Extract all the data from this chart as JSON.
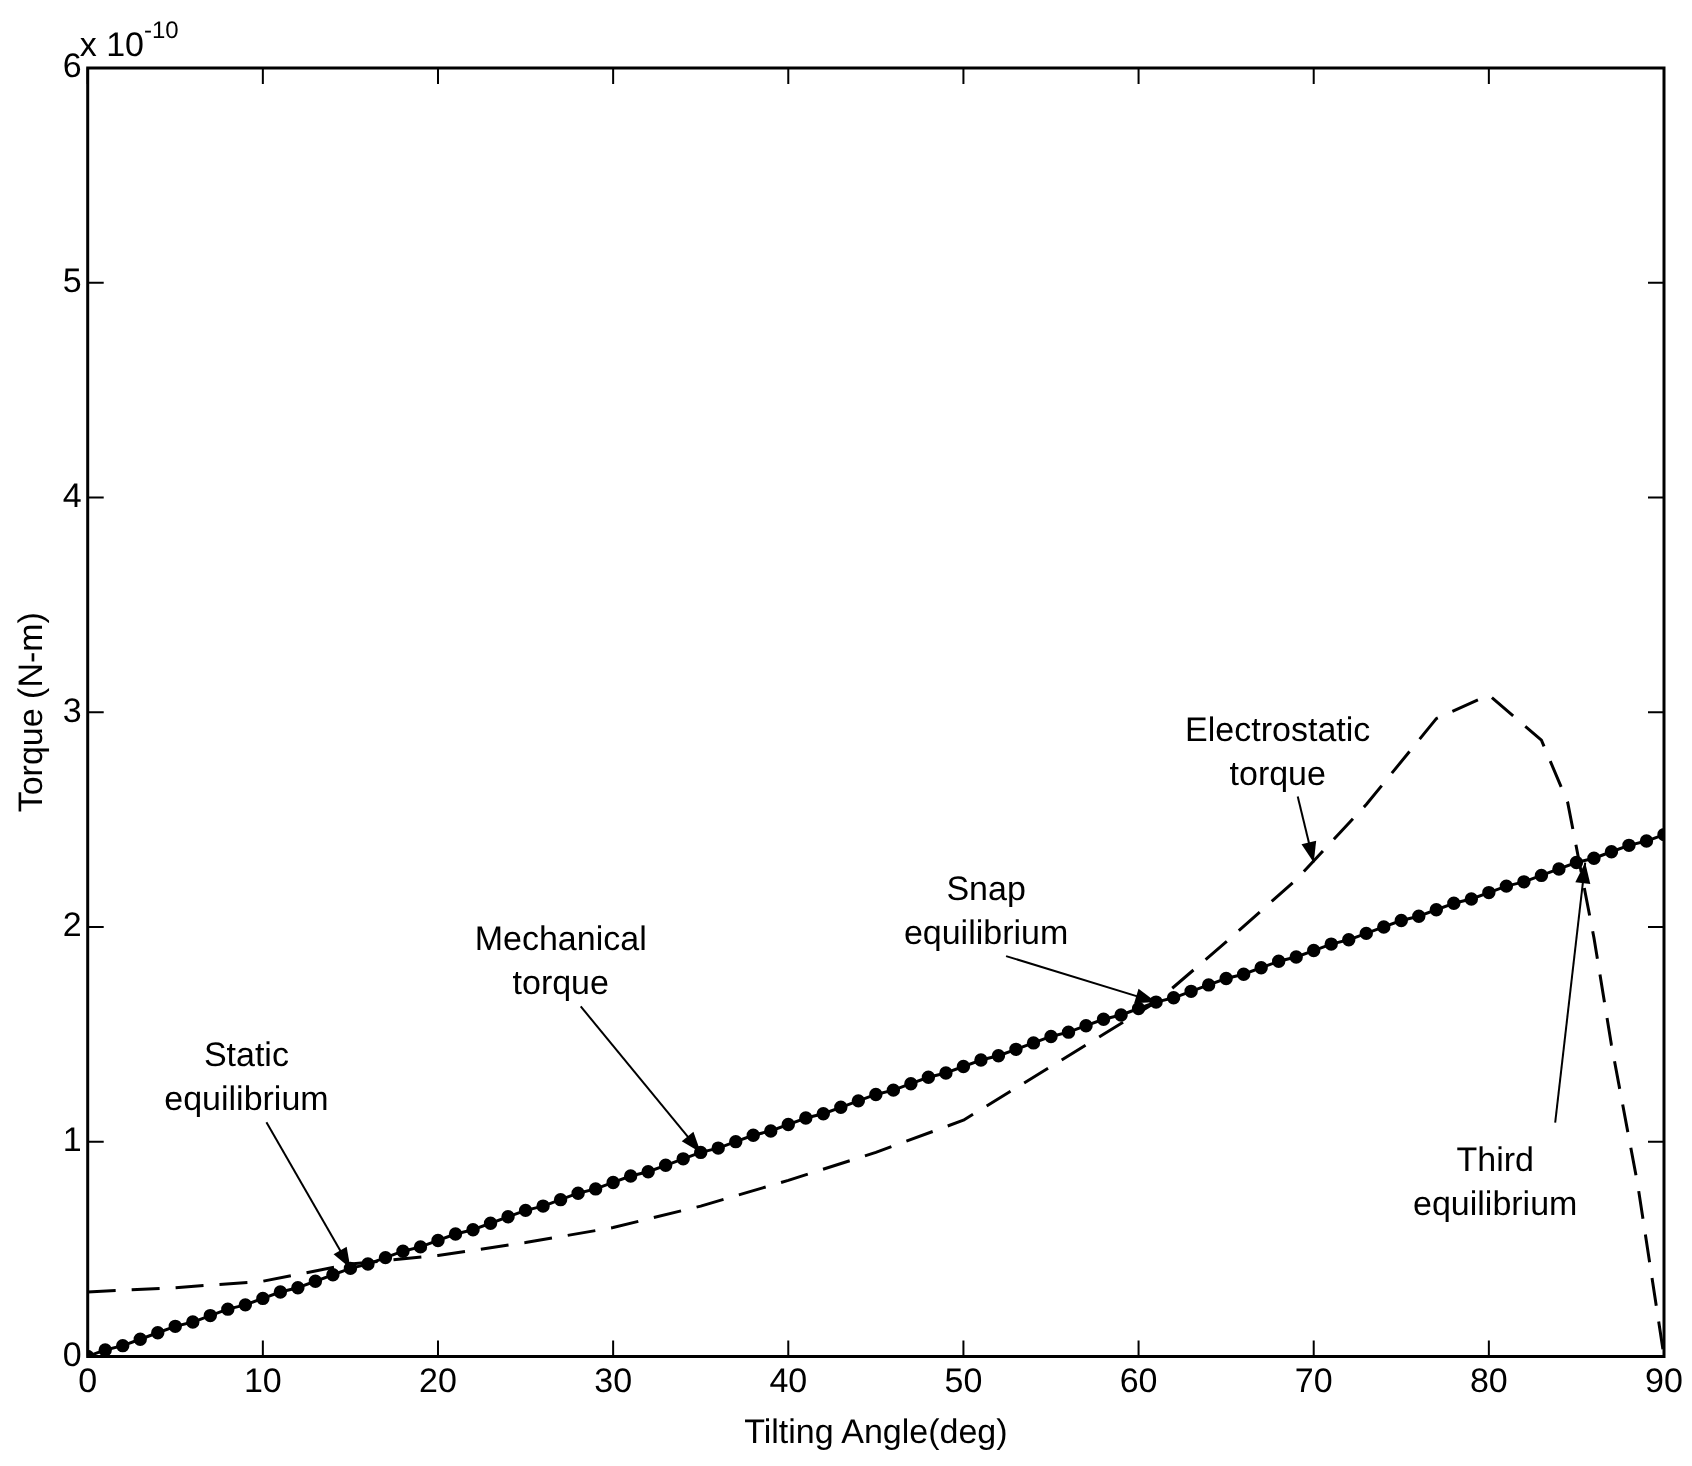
{
  "chart_data": {
    "type": "line",
    "xlabel": "Tilting Angle(deg)",
    "ylabel": "Torque (N-m)",
    "xlim": [
      0,
      90
    ],
    "xticks": [
      0,
      10,
      20,
      30,
      40,
      50,
      60,
      70,
      80,
      90
    ],
    "ylim": [
      0,
      6
    ],
    "yticks": [
      0,
      1,
      2,
      3,
      4,
      5,
      6
    ],
    "grid": false,
    "legend": false,
    "annotations": [
      "x 10$^{-10}$",
      {
        "text": "Static equilibrium",
        "x": 15,
        "y": 0.41
      },
      {
        "text": "Mechanical torque",
        "x": 35,
        "y": 0.95
      },
      {
        "text": "Snap equilibrium",
        "x": 61,
        "y": 1.65
      },
      {
        "text": "Electrostatic torque",
        "x": 70,
        "y": 2.3
      },
      {
        "text": "Third equilibrium",
        "x": 85.5,
        "y": 2.3
      }
    ],
    "series": [
      {
        "color": "#000000",
        "marker": "circle",
        "line_style": "solid",
        "x": [
          0,
          1,
          2,
          3,
          4,
          5,
          6,
          7,
          8,
          9,
          10,
          11,
          12,
          13,
          14,
          15,
          16,
          17,
          18,
          19,
          20,
          21,
          22,
          23,
          24,
          25,
          26,
          27,
          28,
          29,
          30,
          31,
          32,
          33,
          34,
          35,
          36,
          37,
          38,
          39,
          40,
          41,
          42,
          43,
          44,
          45,
          46,
          47,
          48,
          49,
          50,
          51,
          52,
          53,
          54,
          55,
          56,
          57,
          58,
          59,
          60,
          61,
          62,
          63,
          64,
          65,
          66,
          67,
          68,
          69,
          70,
          71,
          72,
          73,
          74,
          75,
          76,
          77,
          78,
          79,
          80,
          81,
          82,
          83,
          84,
          85,
          86,
          87,
          88,
          89,
          90
        ],
        "values": [
          0,
          0.03,
          0.05,
          0.08,
          0.11,
          0.14,
          0.16,
          0.19,
          0.22,
          0.24,
          0.27,
          0.3,
          0.32,
          0.35,
          0.38,
          0.41,
          0.43,
          0.46,
          0.49,
          0.51,
          0.54,
          0.57,
          0.59,
          0.62,
          0.65,
          0.68,
          0.7,
          0.73,
          0.76,
          0.78,
          0.81,
          0.84,
          0.86,
          0.89,
          0.92,
          0.95,
          0.97,
          1.0,
          1.03,
          1.05,
          1.08,
          1.11,
          1.13,
          1.16,
          1.19,
          1.22,
          1.24,
          1.27,
          1.3,
          1.32,
          1.35,
          1.38,
          1.4,
          1.43,
          1.46,
          1.49,
          1.51,
          1.54,
          1.57,
          1.59,
          1.62,
          1.65,
          1.67,
          1.7,
          1.73,
          1.76,
          1.78,
          1.81,
          1.84,
          1.86,
          1.89,
          1.92,
          1.94,
          1.97,
          2.0,
          2.03,
          2.05,
          2.08,
          2.11,
          2.13,
          2.16,
          2.19,
          2.21,
          2.24,
          2.27,
          2.3,
          2.32,
          2.35,
          2.38,
          2.4,
          2.43
        ]
      },
      {
        "color": "#000000",
        "marker": "none",
        "line_style": "dashed",
        "x": [
          0,
          5,
          10,
          15,
          20,
          25,
          30,
          35,
          40,
          45,
          50,
          53,
          55,
          58,
          61,
          65,
          69,
          73,
          77,
          80,
          83,
          84.5,
          86,
          87,
          88.5,
          90
        ],
        "values": [
          0.3,
          0.32,
          0.35,
          0.43,
          0.47,
          0.53,
          0.6,
          0.7,
          0.82,
          0.95,
          1.1,
          1.25,
          1.35,
          1.5,
          1.65,
          1.93,
          2.22,
          2.57,
          2.97,
          3.08,
          2.87,
          2.58,
          1.95,
          1.45,
          0.8,
          0
        ]
      }
    ]
  }
}
